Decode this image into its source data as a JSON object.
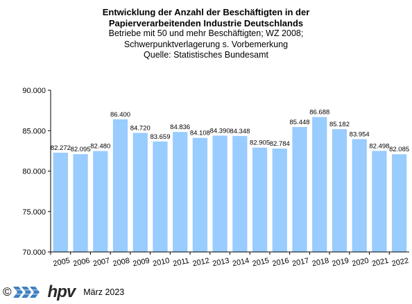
{
  "title": {
    "line1": "Entwicklung der Anzahl der Beschäftigten in der",
    "line2": "Papierverarbeitenden Industrie Deutschlands",
    "line3": "Betriebe mit 50 und mehr Beschäftigten; WZ 2008;",
    "line4": "Schwerpunktverlagerung  s. Vorbemerkung",
    "line5": "Quelle: Statistisches Bundesamt"
  },
  "footer": {
    "copyright": "©",
    "logo_text": "hpv",
    "date": "März 2023"
  },
  "colors": {
    "bar": "#99ccff",
    "axis": "#000000"
  },
  "chart_data": {
    "type": "bar",
    "categories": [
      "2005",
      "2006",
      "2007",
      "2008",
      "2009",
      "2010",
      "2011",
      "2012",
      "2013",
      "2014",
      "2015",
      "2016",
      "2017",
      "2018",
      "2019",
      "2020",
      "2021",
      "2022"
    ],
    "values": [
      82272,
      82095,
      82480,
      86400,
      84720,
      83659,
      84836,
      84108,
      84390,
      84348,
      82905,
      82784,
      85448,
      86688,
      85182,
      83954,
      82498,
      82085
    ],
    "value_labels": [
      "82.272",
      "82.095",
      "82.480",
      "86.400",
      "84.720",
      "83.659",
      "84.836",
      "84.108",
      "84.390",
      "84.348",
      "82.905",
      "82.784",
      "85.448",
      "86.688",
      "85.182",
      "83.954",
      "82.498",
      "82.085"
    ],
    "ylim": [
      70000,
      90000
    ],
    "yticks": [
      70000,
      75000,
      80000,
      85000,
      90000
    ],
    "ytick_labels": [
      "70.000",
      "75.000",
      "80.000",
      "85.000",
      "90.000"
    ],
    "grid": false,
    "xlabel": "",
    "ylabel": ""
  }
}
